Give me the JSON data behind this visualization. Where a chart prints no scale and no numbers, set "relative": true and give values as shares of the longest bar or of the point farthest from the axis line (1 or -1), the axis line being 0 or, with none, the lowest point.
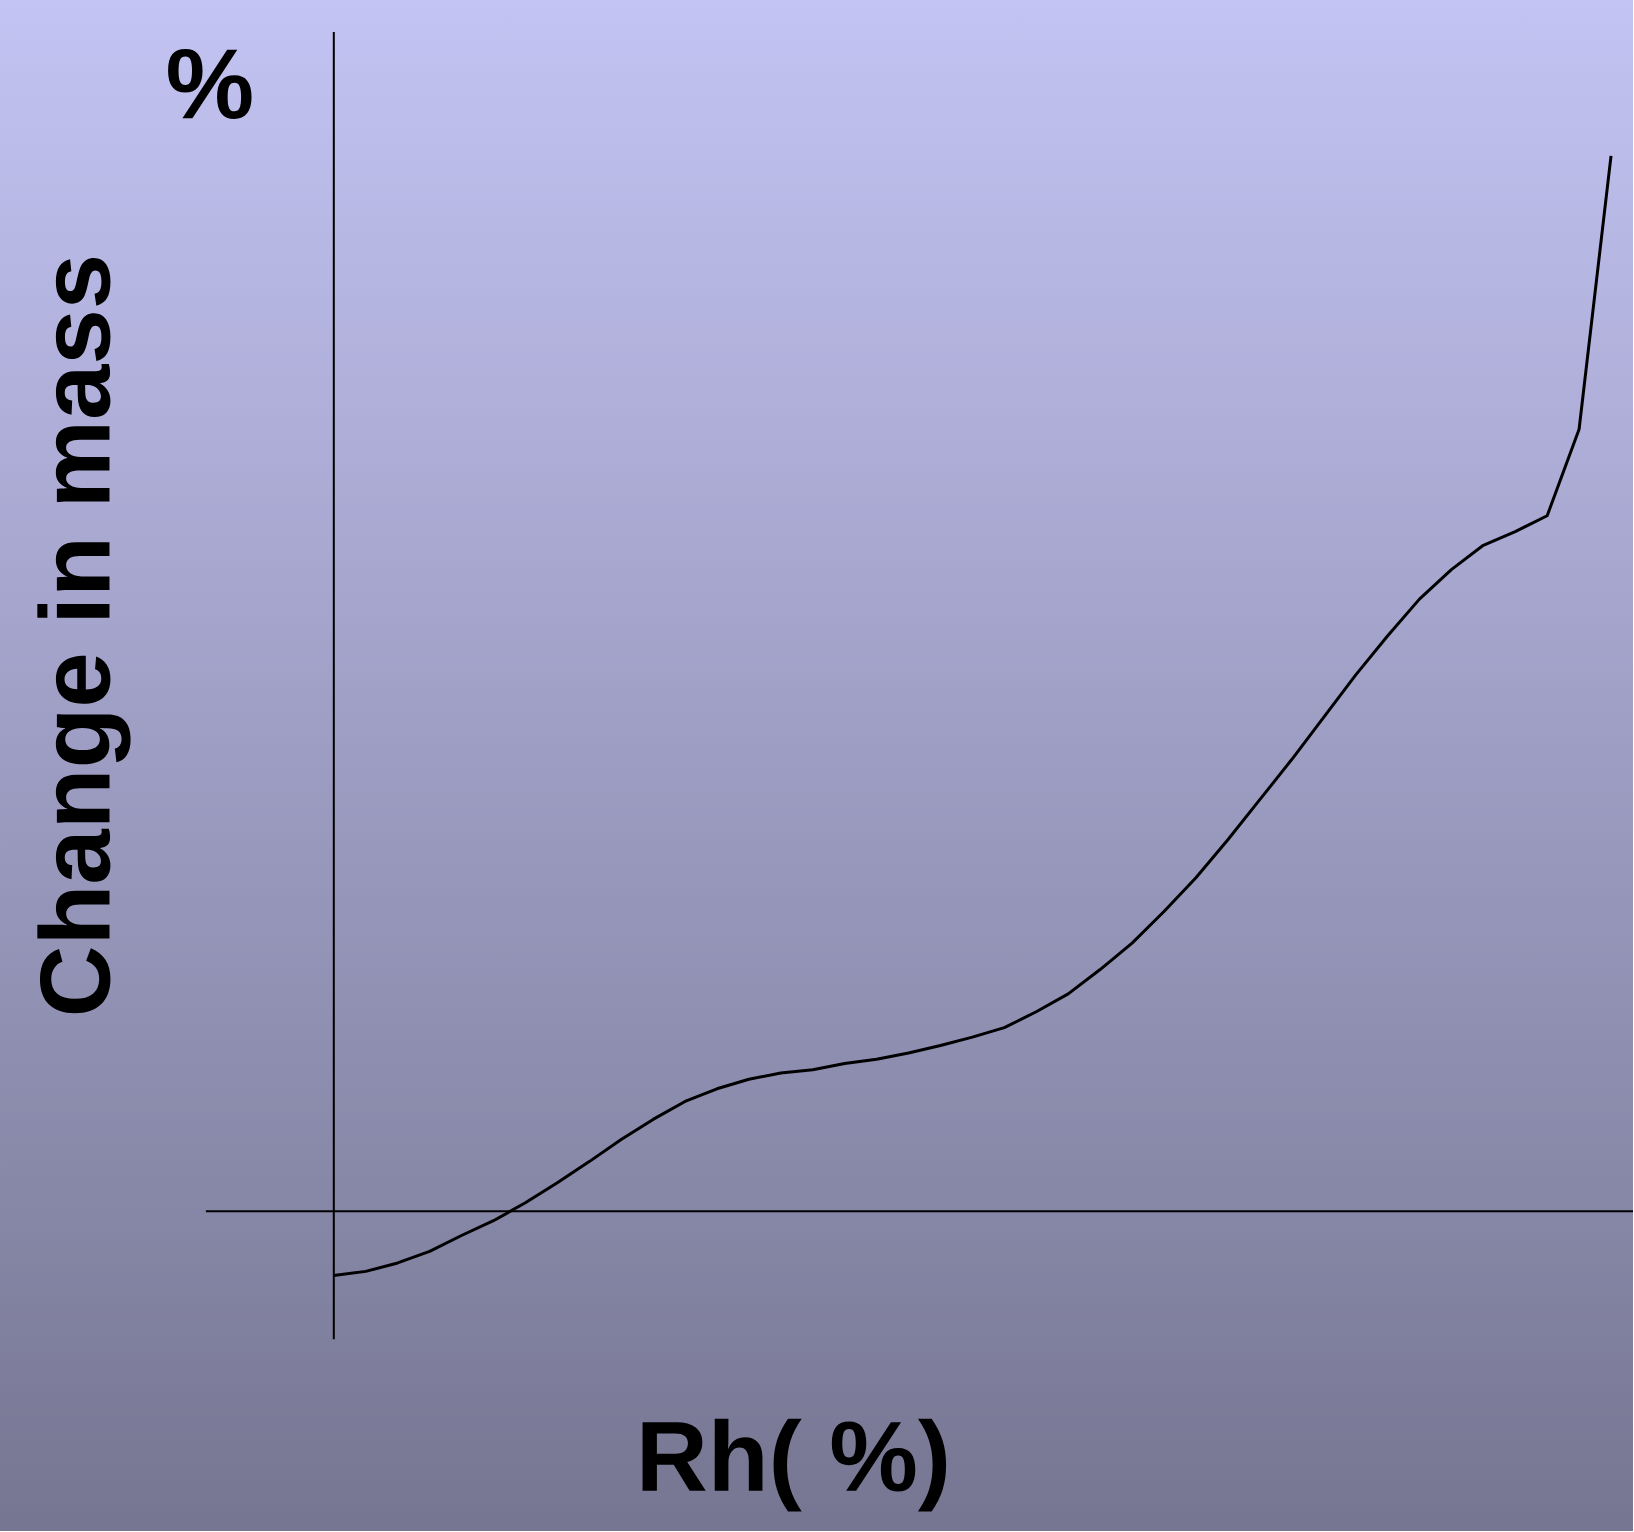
{
  "chart_data": {
    "type": "line",
    "relative": true,
    "xlabel": "Rh( %)",
    "ylabel": "Change in mass",
    "annotations": [
      "%"
    ],
    "categories": [
      null,
      null,
      null,
      null,
      null,
      null,
      null,
      null,
      null,
      null,
      null,
      null,
      null,
      null,
      null,
      null,
      null,
      null,
      null,
      null,
      null,
      null,
      null,
      null,
      null,
      null,
      null,
      null,
      null,
      null,
      null,
      null,
      null,
      null,
      null,
      null,
      null,
      null,
      null,
      null,
      null
    ],
    "series": [
      {
        "color": "#000000",
        "values": [
          -0.061,
          -0.057,
          -0.049,
          -0.038,
          -0.023,
          -0.009,
          0.008,
          0.027,
          0.047,
          0.068,
          0.087,
          0.104,
          0.116,
          0.125,
          0.131,
          0.134,
          0.14,
          0.144,
          0.15,
          0.157,
          0.165,
          0.174,
          0.189,
          0.206,
          0.229,
          0.254,
          0.284,
          0.316,
          0.352,
          0.39,
          0.428,
          0.468,
          0.508,
          0.545,
          0.58,
          0.608,
          0.631,
          0.644,
          0.659,
          0.741,
          1.0
        ]
      }
    ]
  }
}
